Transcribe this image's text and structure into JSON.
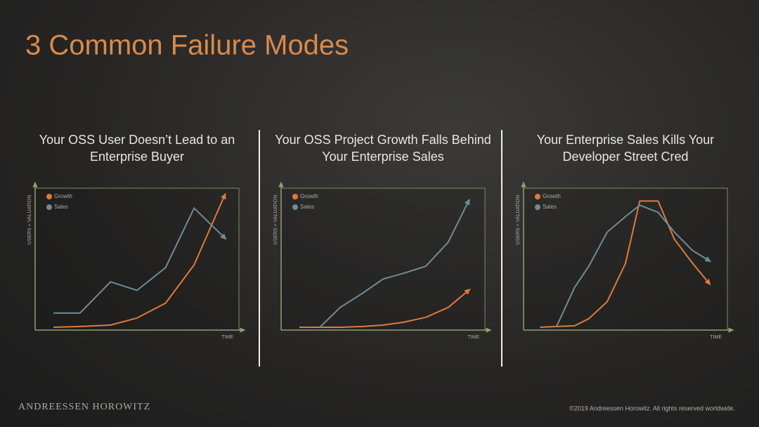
{
  "title": "3 Common Failure Modes",
  "chart_data": [
    {
      "type": "line",
      "title": "Your OSS User Doesn’t Lead to an Enterprise Buyer",
      "xlabel": "TIME",
      "ylabel": "USERS + VALUATION",
      "x": [
        9,
        22,
        37,
        50,
        64,
        78,
        93
      ],
      "xlim": [
        0,
        100
      ],
      "ylim": [
        0,
        100
      ],
      "series": [
        {
          "name": "Growth",
          "color": "#e0793a",
          "values": [
            2,
            2.5,
            3.5,
            8.5,
            19,
            46,
            95
          ]
        },
        {
          "name": "Sales",
          "color": "#6d8d97",
          "values": [
            12,
            12,
            34,
            28,
            44,
            86,
            65
          ]
        }
      ]
    },
    {
      "type": "line",
      "title": "Your OSS Project Growth Falls Behind Your Enterprise Sales",
      "xlabel": "TIME",
      "ylabel": "USERS + VALUATION",
      "x": [
        9,
        19,
        29,
        40,
        50,
        60,
        71,
        82,
        92
      ],
      "xlim": [
        0,
        100
      ],
      "ylim": [
        0,
        100
      ],
      "series": [
        {
          "name": "Growth",
          "color": "#e0793a",
          "values": [
            2,
            2,
            2,
            2.5,
            3.5,
            5.5,
            9,
            16,
            28
          ]
        },
        {
          "name": "Sales",
          "color": "#6d8d97",
          "values": [
            null,
            2,
            16,
            26,
            36,
            40,
            45,
            62,
            91
          ]
        }
      ]
    },
    {
      "type": "line",
      "title": "Your Enterprise Sales Kills Your Developer Street Cred",
      "xlabel": "TIME",
      "ylabel": "USERS + VALUATION",
      "x": [
        8,
        16,
        25,
        32,
        41,
        50,
        57,
        66,
        74,
        83,
        91
      ],
      "xlim": [
        0,
        100
      ],
      "ylim": [
        0,
        100
      ],
      "series": [
        {
          "name": "Growth",
          "color": "#e0793a",
          "values": [
            2,
            2.5,
            3,
            8,
            20,
            47,
            91,
            91,
            64,
            47,
            33
          ]
        },
        {
          "name": "Sales",
          "color": "#6d8d97",
          "values": [
            null,
            2,
            30,
            45,
            69,
            80,
            88,
            83,
            69,
            56,
            49
          ]
        }
      ]
    }
  ],
  "footer": {
    "brand": "ANDREESSEN HOROWITZ",
    "copyright": "©2019 Andreessen Horowitz. All rights reserved worldwide."
  }
}
